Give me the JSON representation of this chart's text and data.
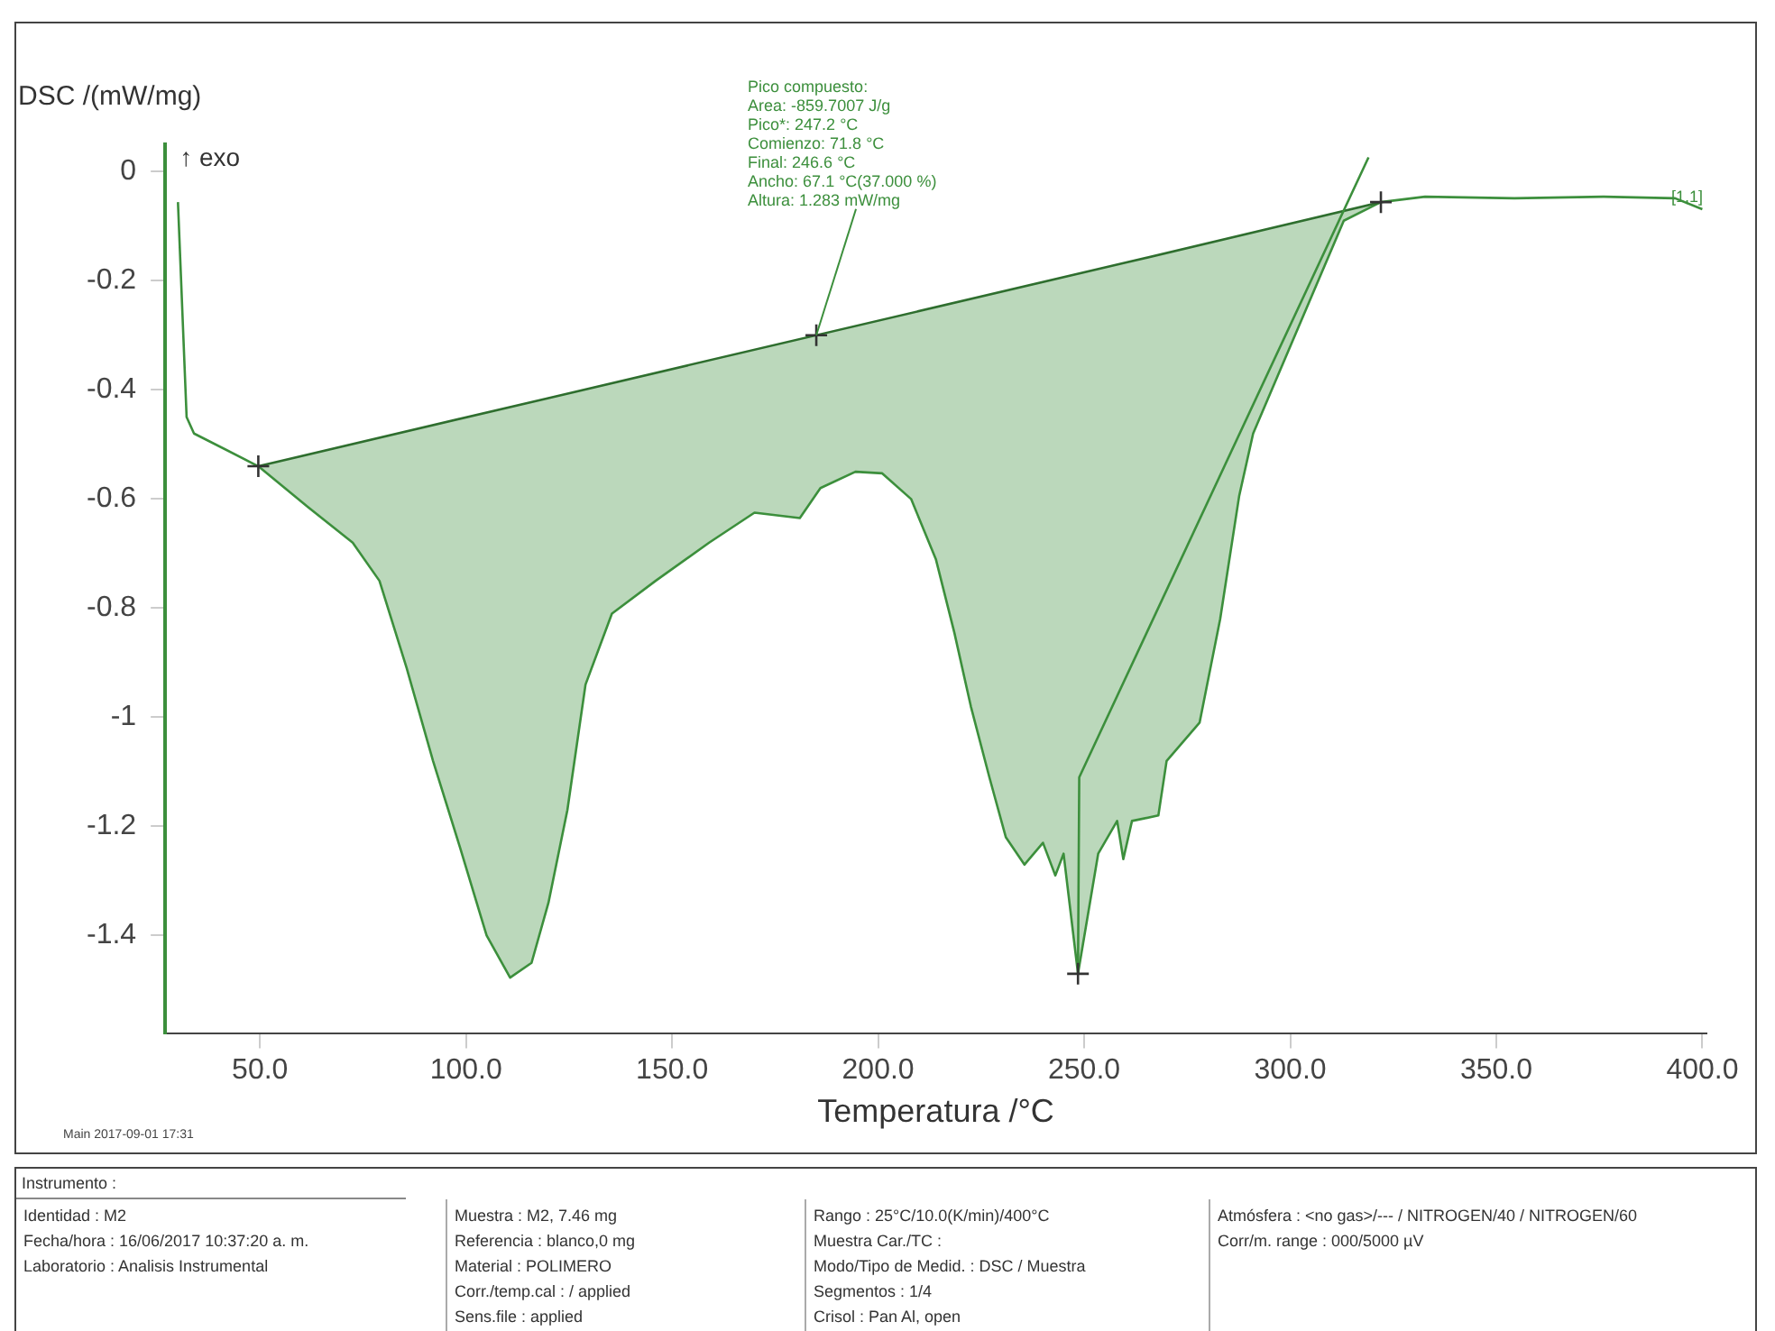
{
  "chart_data": {
    "type": "line",
    "xlabel": "Temperatura /°C",
    "ylabel": "DSC /(mW/mg)",
    "xlim": [
      27,
      401
    ],
    "ylim": [
      -1.58,
      0.05
    ],
    "xticks": [
      {
        "value": 50,
        "label": "50.0"
      },
      {
        "value": 100,
        "label": "100.0"
      },
      {
        "value": 150,
        "label": "150.0"
      },
      {
        "value": 200,
        "label": "200.0"
      },
      {
        "value": 250,
        "label": "250.0"
      },
      {
        "value": 300,
        "label": "300.0"
      },
      {
        "value": 350,
        "label": "350.0"
      },
      {
        "value": 400,
        "label": "400.0"
      }
    ],
    "yticks": [
      0,
      -0.2,
      -0.4,
      -0.6,
      -0.8,
      -1,
      -1.2,
      -1.4
    ],
    "grid": false,
    "legend": false,
    "series": [
      {
        "type": "line",
        "color": "#3c8f3c",
        "x": [
          30.1,
          32.2,
          34,
          49.6
        ],
        "values": [
          -0.056,
          -0.45,
          -0.48,
          -0.54
        ]
      },
      {
        "type": "area",
        "color": "#3c8f3c",
        "x": [
          49.6,
          61.7,
          72.5,
          79,
          85.6,
          92,
          98.6,
          105,
          110.7,
          115.9,
          120,
          124.6,
          129,
          135.4,
          146,
          159,
          170,
          181,
          186,
          194.5,
          201,
          208,
          214,
          218.5,
          222.5,
          227,
          231,
          235.5,
          240,
          243,
          245,
          248.5,
          253.4,
          258,
          259.5,
          261.6,
          268,
          270,
          278,
          283,
          287.6,
          291,
          313,
          322
        ],
        "values": [
          -0.54,
          -0.615,
          -0.68,
          -0.75,
          -0.91,
          -1.08,
          -1.24,
          -1.4,
          -1.477,
          -1.45,
          -1.34,
          -1.17,
          -0.94,
          -0.81,
          -0.75,
          -0.68,
          -0.625,
          -0.635,
          -0.58,
          -0.55,
          -0.553,
          -0.6,
          -0.71,
          -0.845,
          -0.98,
          -1.11,
          -1.22,
          -1.27,
          -1.23,
          -1.29,
          -1.25,
          -1.47,
          -1.25,
          -1.19,
          -1.26,
          -1.19,
          -1.18,
          -1.08,
          -1.01,
          -0.82,
          -0.595,
          -0.48,
          -0.09,
          -0.056
        ]
      },
      {
        "type": "line",
        "color": "#2e6e2e",
        "x": [
          49.6,
          120,
          260,
          322
        ],
        "values": [
          -0.54,
          -0.415,
          -0.167,
          -0.056
        ]
      },
      {
        "type": "line",
        "color": "#3c8f3c",
        "x": [
          322,
          332.7,
          354.4,
          376,
          393.4,
          400
        ],
        "values": [
          -0.056,
          -0.046,
          -0.049,
          -0.046,
          -0.049,
          -0.069
        ]
      },
      {
        "type": "line",
        "color": "#3c8f3c",
        "x": [
          248.5,
          248.8,
          319
        ],
        "values": [
          -1.47,
          -1.11,
          0.026
        ]
      },
      {
        "type": "scatter",
        "color": "#333333",
        "marker": "cross",
        "x": [
          49.6,
          185,
          322,
          248.5
        ],
        "values": [
          -0.54,
          -0.3,
          -0.056,
          -1.47
        ]
      }
    ],
    "annotations": [
      "↑ exo",
      "[1,1]",
      "Pico compuesto:",
      "Area: -859.7007 J/g",
      "Pico*: 247.2 °C",
      "Comienzo: 71.8 °C",
      "Final: 246.6 °C",
      "Ancho: 67.1 °C(37.000 %)",
      {
        "text": "Altura: 1.283 mW/mg",
        "x": 185,
        "y": -0.3
      },
      "Main 2017-09-01 17:31",
      "Instrumento :",
      "Identidad : M2",
      "Fecha/hora : 16/06/2017 10:37:20 a. m.",
      "Laboratorio : Analisis Instrumental",
      "Muestra : M2, 7.46 mg",
      "Referencia : blanco,0 mg",
      "Material : POLIMERO",
      "Corr./temp.cal : / applied",
      "Sens.file : applied",
      "Rango : 25°C/10.0(K/min)/400°C",
      "Muestra Car./TC :",
      "Modo/Tipo de Medid. : DSC / Muestra",
      "Segmentos : 1/4",
      "Crisol : Pan Al, open",
      "Atmósfera : <no gas>/--- / NITROGEN/40 / NITROGEN/60",
      "Corr/m. range : 000/5000 µV"
    ]
  }
}
